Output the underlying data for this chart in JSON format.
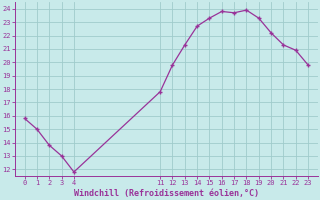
{
  "x": [
    0,
    1,
    2,
    3,
    4,
    11,
    12,
    13,
    14,
    15,
    16,
    17,
    18,
    19,
    20,
    21,
    22,
    23
  ],
  "y": [
    15.8,
    15.0,
    13.8,
    13.0,
    11.8,
    17.8,
    19.8,
    21.3,
    22.7,
    23.3,
    23.8,
    23.7,
    23.9,
    23.3,
    22.2,
    21.3,
    20.9,
    19.8
  ],
  "line_color": "#993399",
  "marker": "+",
  "background_color": "#c8eaea",
  "grid_color": "#a0cccc",
  "xlabel": "Windchill (Refroidissement éolien,°C)",
  "xlabel_color": "#993399",
  "tick_color": "#993399",
  "ylim": [
    11.5,
    24.5
  ],
  "yticks": [
    12,
    13,
    14,
    15,
    16,
    17,
    18,
    19,
    20,
    21,
    22,
    23,
    24
  ],
  "xticks": [
    0,
    1,
    2,
    3,
    4,
    11,
    12,
    13,
    14,
    15,
    16,
    17,
    18,
    19,
    20,
    21,
    22,
    23
  ],
  "xlim": [
    -0.8,
    23.8
  ],
  "axis_color": "#993399"
}
